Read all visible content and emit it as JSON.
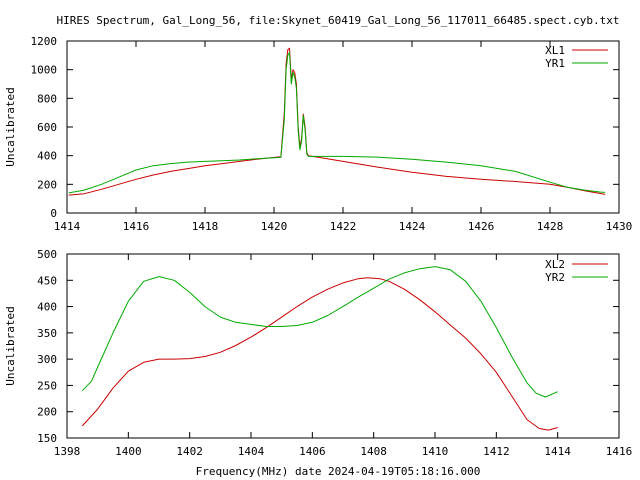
{
  "chart_data": [
    {
      "type": "line",
      "title": "HIRES Spectrum, Gal_Long_56, file:Skynet_60419_Gal_Long_56_117011_66485.spect.cyb.txt",
      "ylabel": "Uncalibrated",
      "xlabel": "",
      "xlim": [
        1414,
        1430
      ],
      "ylim": [
        0,
        1200
      ],
      "xticks": [
        "1414",
        "1416",
        "1418",
        "1420",
        "1422",
        "1424",
        "1426",
        "1428",
        "1430"
      ],
      "yticks": [
        "0",
        "200",
        "400",
        "600",
        "800",
        "1000",
        "1200"
      ],
      "legend": "top-right",
      "series": [
        {
          "name": "XL1",
          "color": "#cc0000",
          "points": [
            [
              1414.05,
              125
            ],
            [
              1414.5,
              135
            ],
            [
              1415,
              165
            ],
            [
              1415.5,
              200
            ],
            [
              1416,
              235
            ],
            [
              1416.5,
              265
            ],
            [
              1417,
              290
            ],
            [
              1417.5,
              310
            ],
            [
              1418,
              330
            ],
            [
              1418.5,
              345
            ],
            [
              1419,
              360
            ],
            [
              1419.5,
              375
            ],
            [
              1420,
              388
            ],
            [
              1420.2,
              392
            ],
            [
              1420.3,
              700
            ],
            [
              1420.35,
              1040
            ],
            [
              1420.4,
              1140
            ],
            [
              1420.45,
              1150
            ],
            [
              1420.5,
              930
            ],
            [
              1420.55,
              1000
            ],
            [
              1420.6,
              980
            ],
            [
              1420.65,
              900
            ],
            [
              1420.7,
              600
            ],
            [
              1420.75,
              460
            ],
            [
              1420.8,
              520
            ],
            [
              1420.85,
              690
            ],
            [
              1420.9,
              600
            ],
            [
              1420.95,
              420
            ],
            [
              1421,
              400
            ],
            [
              1421.5,
              380
            ],
            [
              1422,
              360
            ],
            [
              1423,
              320
            ],
            [
              1424,
              285
            ],
            [
              1425,
              255
            ],
            [
              1426,
              235
            ],
            [
              1427,
              220
            ],
            [
              1428,
              200
            ],
            [
              1428.5,
              180
            ],
            [
              1429,
              155
            ],
            [
              1429.5,
              135
            ],
            [
              1429.6,
              130
            ]
          ]
        },
        {
          "name": "YR1",
          "color": "#00aa00",
          "points": [
            [
              1414.05,
              140
            ],
            [
              1414.5,
              160
            ],
            [
              1415,
              200
            ],
            [
              1415.5,
              250
            ],
            [
              1416,
              300
            ],
            [
              1416.5,
              330
            ],
            [
              1417,
              345
            ],
            [
              1417.5,
              355
            ],
            [
              1418,
              360
            ],
            [
              1418.5,
              365
            ],
            [
              1419,
              370
            ],
            [
              1419.5,
              378
            ],
            [
              1420,
              385
            ],
            [
              1420.2,
              388
            ],
            [
              1420.3,
              650
            ],
            [
              1420.35,
              1000
            ],
            [
              1420.4,
              1100
            ],
            [
              1420.45,
              1120
            ],
            [
              1420.5,
              900
            ],
            [
              1420.55,
              980
            ],
            [
              1420.6,
              950
            ],
            [
              1420.65,
              870
            ],
            [
              1420.7,
              570
            ],
            [
              1420.75,
              440
            ],
            [
              1420.8,
              500
            ],
            [
              1420.85,
              680
            ],
            [
              1420.9,
              580
            ],
            [
              1420.95,
              410
            ],
            [
              1421,
              395
            ],
            [
              1422,
              395
            ],
            [
              1423,
              390
            ],
            [
              1424,
              375
            ],
            [
              1425,
              355
            ],
            [
              1426,
              330
            ],
            [
              1427,
              290
            ],
            [
              1428,
              215
            ],
            [
              1428.5,
              180
            ],
            [
              1429,
              160
            ],
            [
              1429.5,
              145
            ],
            [
              1429.6,
              145
            ]
          ]
        }
      ]
    },
    {
      "type": "line",
      "title": "",
      "ylabel": "Uncalibrated",
      "xlabel": "Frequency(MHz) date 2024-04-19T05:18:16.000",
      "xlim": [
        1398,
        1416
      ],
      "ylim": [
        150,
        500
      ],
      "xticks": [
        "1398",
        "1400",
        "1402",
        "1404",
        "1406",
        "1408",
        "1410",
        "1412",
        "1414",
        "1416"
      ],
      "yticks": [
        "150",
        "200",
        "250",
        "300",
        "350",
        "400",
        "450",
        "500"
      ],
      "legend": "top-right",
      "series": [
        {
          "name": "XL2",
          "color": "#cc0000",
          "points": [
            [
              1398.5,
              173
            ],
            [
              1399,
              205
            ],
            [
              1399.5,
              245
            ],
            [
              1400,
              277
            ],
            [
              1400.5,
              294
            ],
            [
              1401,
              300
            ],
            [
              1401.5,
              300
            ],
            [
              1402,
              301
            ],
            [
              1402.5,
              305
            ],
            [
              1403,
              313
            ],
            [
              1403.5,
              326
            ],
            [
              1404,
              342
            ],
            [
              1404.5,
              360
            ],
            [
              1405,
              380
            ],
            [
              1405.5,
              400
            ],
            [
              1406,
              418
            ],
            [
              1406.5,
              433
            ],
            [
              1407,
              445
            ],
            [
              1407.5,
              453
            ],
            [
              1407.8,
              455
            ],
            [
              1408.2,
              453
            ],
            [
              1408.5,
              448
            ],
            [
              1409,
              433
            ],
            [
              1409.5,
              413
            ],
            [
              1410,
              390
            ],
            [
              1410.5,
              365
            ],
            [
              1411,
              340
            ],
            [
              1411.5,
              310
            ],
            [
              1412,
              275
            ],
            [
              1412.5,
              230
            ],
            [
              1413,
              185
            ],
            [
              1413.4,
              168
            ],
            [
              1413.7,
              165
            ],
            [
              1414,
              170
            ]
          ]
        },
        {
          "name": "YR2",
          "color": "#00aa00",
          "points": [
            [
              1398.5,
              240
            ],
            [
              1398.8,
              258
            ],
            [
              1399,
              285
            ],
            [
              1399.5,
              350
            ],
            [
              1400,
              410
            ],
            [
              1400.5,
              448
            ],
            [
              1401,
              457
            ],
            [
              1401.5,
              450
            ],
            [
              1402,
              427
            ],
            [
              1402.5,
              400
            ],
            [
              1403,
              380
            ],
            [
              1403.5,
              370
            ],
            [
              1404,
              366
            ],
            [
              1404.5,
              362
            ],
            [
              1405,
              362
            ],
            [
              1405.5,
              364
            ],
            [
              1406,
              370
            ],
            [
              1406.5,
              383
            ],
            [
              1407,
              400
            ],
            [
              1407.5,
              418
            ],
            [
              1408,
              435
            ],
            [
              1408.5,
              452
            ],
            [
              1409,
              464
            ],
            [
              1409.5,
              472
            ],
            [
              1410,
              476
            ],
            [
              1410.5,
              470
            ],
            [
              1411,
              448
            ],
            [
              1411.5,
              410
            ],
            [
              1412,
              360
            ],
            [
              1412.5,
              305
            ],
            [
              1413,
              255
            ],
            [
              1413.3,
              235
            ],
            [
              1413.6,
              228
            ],
            [
              1414,
              238
            ]
          ]
        }
      ]
    }
  ]
}
